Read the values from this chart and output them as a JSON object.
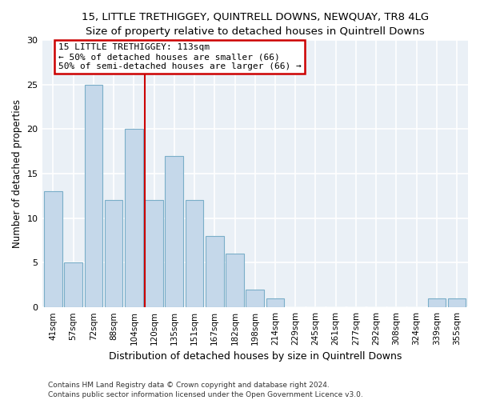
{
  "title1": "15, LITTLE TRETHIGGEY, QUINTRELL DOWNS, NEWQUAY, TR8 4LG",
  "title2": "Size of property relative to detached houses in Quintrell Downs",
  "xlabel": "Distribution of detached houses by size in Quintrell Downs",
  "ylabel": "Number of detached properties",
  "bar_labels": [
    "41sqm",
    "57sqm",
    "72sqm",
    "88sqm",
    "104sqm",
    "120sqm",
    "135sqm",
    "151sqm",
    "167sqm",
    "182sqm",
    "198sqm",
    "214sqm",
    "229sqm",
    "245sqm",
    "261sqm",
    "277sqm",
    "292sqm",
    "308sqm",
    "324sqm",
    "339sqm",
    "355sqm"
  ],
  "bar_values": [
    13,
    5,
    25,
    12,
    20,
    12,
    17,
    12,
    8,
    6,
    2,
    1,
    0,
    0,
    0,
    0,
    0,
    0,
    0,
    1,
    1
  ],
  "bar_color": "#c5d8ea",
  "bar_edge_color": "#7aaec8",
  "vline_color": "#cc0000",
  "annotation_title": "15 LITTLE TRETHIGGEY: 113sqm",
  "annotation_line1": "← 50% of detached houses are smaller (66)",
  "annotation_line2": "50% of semi-detached houses are larger (66) →",
  "annotation_box_color": "white",
  "annotation_box_edge": "#cc0000",
  "ylim": [
    0,
    30
  ],
  "yticks": [
    0,
    5,
    10,
    15,
    20,
    25,
    30
  ],
  "footer1": "Contains HM Land Registry data © Crown copyright and database right 2024.",
  "footer2": "Contains public sector information licensed under the Open Government Licence v3.0.",
  "bg_color": "#eaf0f6"
}
